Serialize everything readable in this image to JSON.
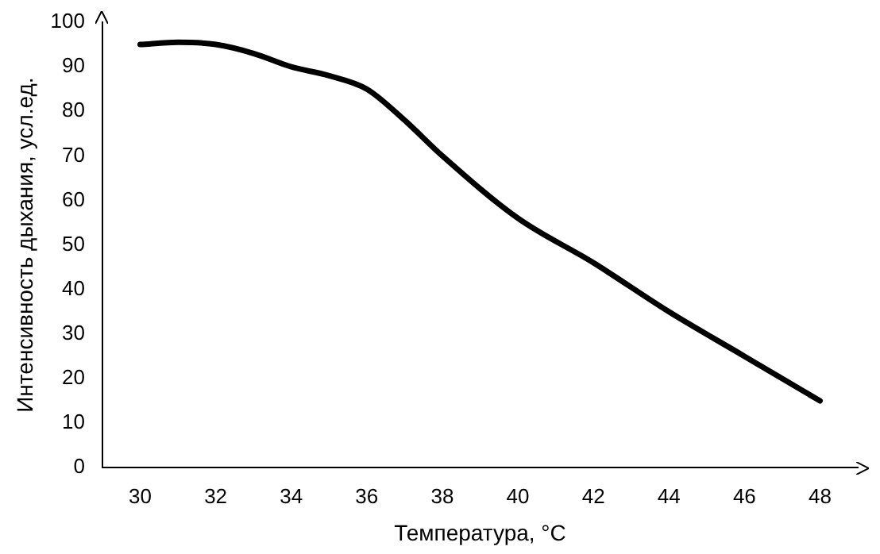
{
  "chart_data": {
    "type": "line",
    "xlabel": "Температура, °C",
    "ylabel": "Интенсивность дыхания, усл.ед.",
    "x": [
      30,
      31,
      32,
      33,
      34,
      35,
      36,
      37,
      38,
      40,
      42,
      44,
      46,
      48
    ],
    "series": [
      {
        "color": "#000000",
        "values": [
          95,
          95.5,
          95,
          93,
          90,
          88,
          85,
          78,
          70,
          56,
          46,
          35,
          25,
          15
        ]
      }
    ],
    "xlim": [
      29,
      49
    ],
    "ylim": [
      0,
      100
    ],
    "xticks": [
      30,
      32,
      34,
      36,
      38,
      40,
      42,
      44,
      46,
      48
    ],
    "yticks": [
      0,
      10,
      20,
      30,
      40,
      50,
      60,
      70,
      80,
      90,
      100
    ],
    "grid": false,
    "legend": false,
    "marker": "none",
    "line_style": "solid"
  }
}
